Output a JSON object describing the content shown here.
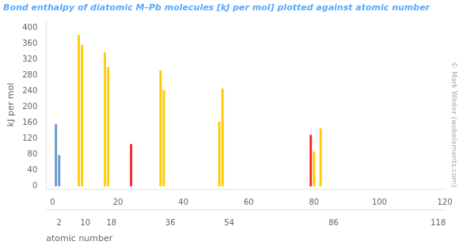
{
  "chart_data": {
    "type": "bar",
    "title": "Bond enthalpy of diatomic M–Pb molecules [kJ per mol] plotted against atomic number",
    "xlabel": "atomic number",
    "ylabel": "kJ per mol",
    "x": [
      1,
      2,
      8,
      9,
      16,
      17,
      24,
      33,
      34,
      51,
      52,
      79,
      80,
      82
    ],
    "values": [
      157,
      79,
      382,
      357,
      338,
      301,
      107,
      293,
      243,
      163,
      247,
      130,
      88,
      146
    ],
    "colors": [
      "#6699cc",
      "#6699cc",
      "#ffcc00",
      "#ffcc00",
      "#ffcc00",
      "#ffcc00",
      "#ff2222",
      "#ffcc00",
      "#ffcc00",
      "#ffcc00",
      "#ffcc00",
      "#ff2222",
      "#ffcc00",
      "#ffcc00"
    ],
    "xlim": [
      -2,
      120
    ],
    "xticks": [
      0,
      20,
      40,
      60,
      80,
      100,
      120
    ],
    "x2ticks": [
      2,
      10,
      18,
      36,
      54,
      86,
      118
    ],
    "ylim": [
      -8,
      420
    ],
    "yticks": [
      0,
      40,
      80,
      120,
      160,
      200,
      240,
      280,
      320,
      360,
      400
    ],
    "grid": false,
    "annotations": [
      "© Mark Winter (webelements.com)"
    ]
  }
}
